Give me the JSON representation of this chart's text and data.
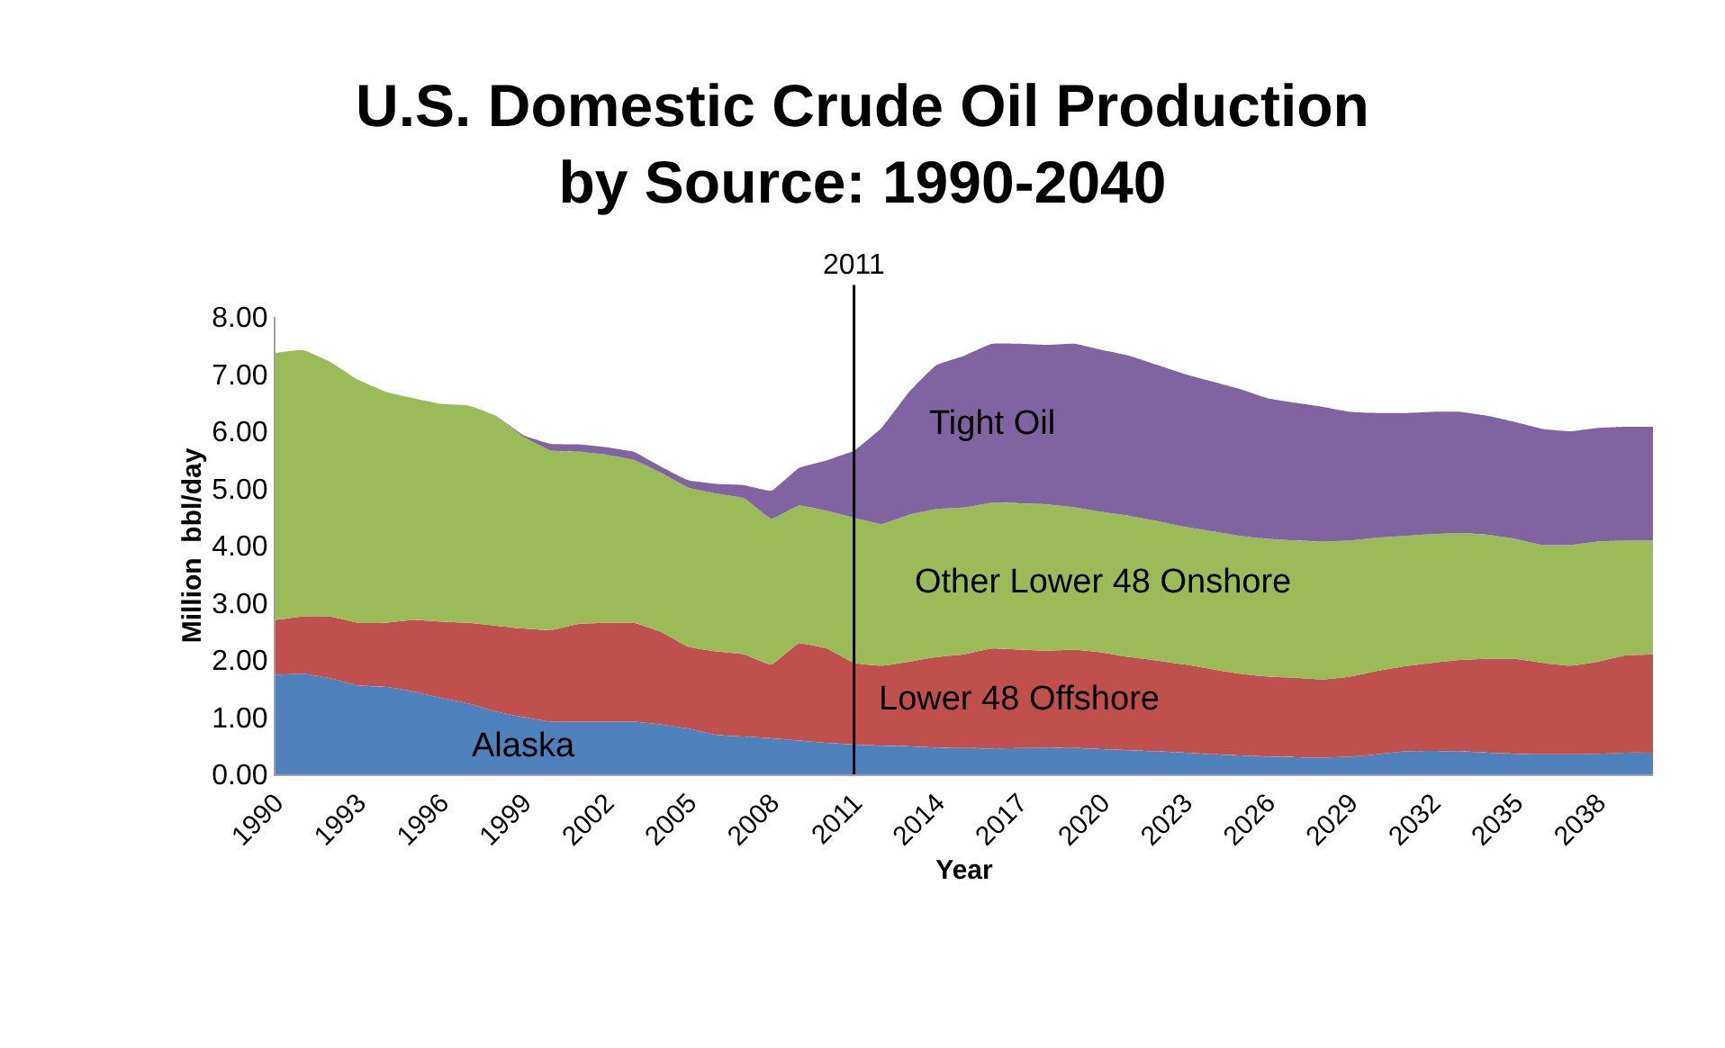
{
  "chart_data": {
    "type": "area",
    "stacked": true,
    "title": "U.S. Domestic Crude Oil Production\nby Source: 1990-2040",
    "xlabel": "Year",
    "ylabel": "Million  bbl/day",
    "x": [
      1990,
      1991,
      1992,
      1993,
      1994,
      1995,
      1996,
      1997,
      1998,
      1999,
      2000,
      2001,
      2002,
      2003,
      2004,
      2005,
      2006,
      2007,
      2008,
      2009,
      2010,
      2011,
      2012,
      2013,
      2014,
      2015,
      2016,
      2017,
      2018,
      2019,
      2020,
      2021,
      2022,
      2023,
      2024,
      2025,
      2026,
      2027,
      2028,
      2029,
      2030,
      2031,
      2032,
      2033,
      2034,
      2035,
      2036,
      2037,
      2038,
      2039,
      2040
    ],
    "series": [
      {
        "name": "Alaska",
        "color": "#4f81bd",
        "values": [
          1.74,
          1.76,
          1.68,
          1.55,
          1.53,
          1.45,
          1.34,
          1.24,
          1.1,
          1.0,
          0.92,
          0.92,
          0.92,
          0.92,
          0.87,
          0.8,
          0.69,
          0.66,
          0.63,
          0.59,
          0.55,
          0.52,
          0.5,
          0.49,
          0.47,
          0.46,
          0.45,
          0.46,
          0.47,
          0.46,
          0.44,
          0.42,
          0.4,
          0.38,
          0.35,
          0.33,
          0.31,
          0.3,
          0.29,
          0.31,
          0.35,
          0.4,
          0.41,
          0.4,
          0.38,
          0.36,
          0.35,
          0.35,
          0.36,
          0.38,
          0.38
        ]
      },
      {
        "name": "Lower 48 Offshore",
        "color": "#c0504d",
        "values": [
          0.96,
          1.0,
          1.08,
          1.1,
          1.12,
          1.25,
          1.33,
          1.41,
          1.5,
          1.55,
          1.6,
          1.71,
          1.73,
          1.73,
          1.62,
          1.43,
          1.46,
          1.44,
          1.29,
          1.7,
          1.65,
          1.43,
          1.4,
          1.48,
          1.58,
          1.64,
          1.75,
          1.72,
          1.69,
          1.72,
          1.69,
          1.63,
          1.59,
          1.54,
          1.49,
          1.43,
          1.4,
          1.39,
          1.37,
          1.4,
          1.46,
          1.49,
          1.54,
          1.6,
          1.64,
          1.66,
          1.6,
          1.55,
          1.61,
          1.7,
          1.72
        ]
      },
      {
        "name": "Other Lower 48 Onshore",
        "color": "#9bbb59",
        "values": [
          4.67,
          4.66,
          4.45,
          4.25,
          4.04,
          3.88,
          3.81,
          3.8,
          3.67,
          3.35,
          3.14,
          3.01,
          2.94,
          2.85,
          2.78,
          2.78,
          2.76,
          2.73,
          2.55,
          2.41,
          2.41,
          2.54,
          2.48,
          2.57,
          2.59,
          2.57,
          2.55,
          2.56,
          2.56,
          2.49,
          2.46,
          2.47,
          2.44,
          2.41,
          2.41,
          2.41,
          2.41,
          2.4,
          2.41,
          2.38,
          2.33,
          2.28,
          2.25,
          2.22,
          2.17,
          2.1,
          2.06,
          2.11,
          2.1,
          2.01,
          1.99
        ]
      },
      {
        "name": "Tight Oil",
        "color": "#8064a2",
        "values": [
          0,
          0,
          0,
          0,
          0,
          0,
          0,
          0,
          0,
          0.03,
          0.12,
          0.13,
          0.13,
          0.14,
          0.11,
          0.13,
          0.17,
          0.23,
          0.49,
          0.66,
          0.88,
          1.17,
          1.68,
          2.15,
          2.52,
          2.65,
          2.78,
          2.79,
          2.79,
          2.86,
          2.83,
          2.8,
          2.73,
          2.67,
          2.62,
          2.57,
          2.46,
          2.41,
          2.36,
          2.25,
          2.18,
          2.15,
          2.14,
          2.12,
          2.08,
          2.04,
          2.03,
          1.99,
          1.99,
          1.99,
          1.99
        ]
      }
    ],
    "xlim": [
      1990,
      2040
    ],
    "xticks": [
      1990,
      1993,
      1996,
      1999,
      2002,
      2005,
      2008,
      2011,
      2014,
      2017,
      2020,
      2023,
      2026,
      2029,
      2032,
      2035,
      2038
    ],
    "ylim": [
      0,
      8
    ],
    "yticks": [
      {
        "value": 0,
        "label": "0.00"
      },
      {
        "value": 1,
        "label": "1.00"
      },
      {
        "value": 2,
        "label": "2.00"
      },
      {
        "value": 3,
        "label": "3.00"
      },
      {
        "value": 4,
        "label": "4.00"
      },
      {
        "value": 5,
        "label": "5.00"
      },
      {
        "value": 6,
        "label": "6.00"
      },
      {
        "value": 7,
        "label": "7.00"
      },
      {
        "value": 8,
        "label": "8.00"
      }
    ],
    "ref_lines": [
      {
        "axis": "x",
        "value": 2011,
        "label": "2011",
        "color": "#000000"
      }
    ],
    "grid": false,
    "legend": false
  }
}
